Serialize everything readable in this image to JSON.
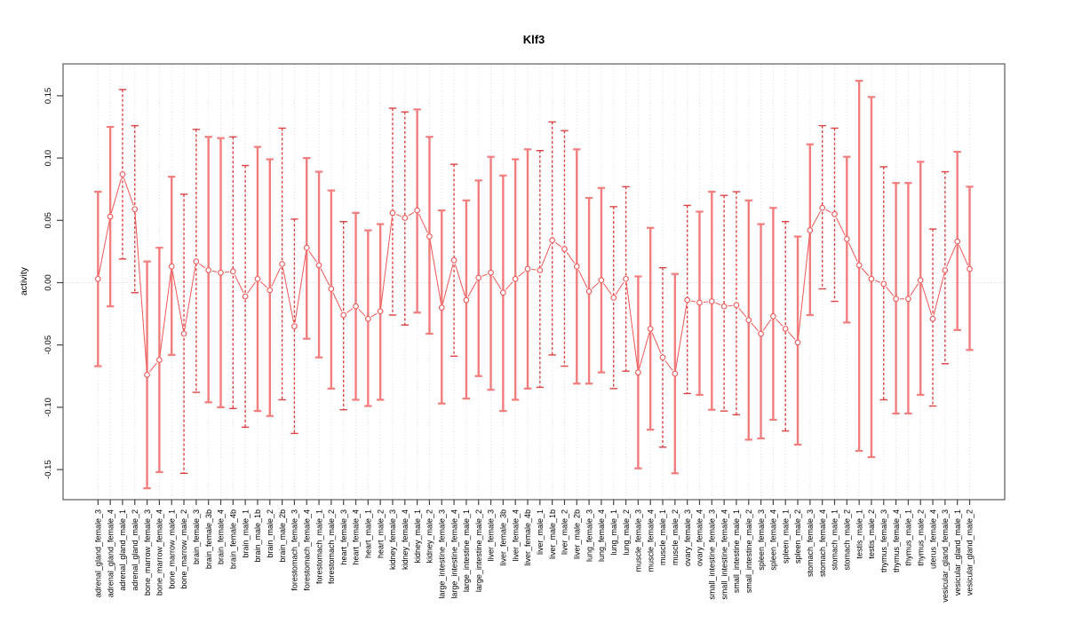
{
  "page": {
    "background": "#ffffff"
  },
  "chart_data": {
    "type": "scatter",
    "subtype": "points-with-error-bars",
    "title": "Klf3",
    "xlabel": "",
    "ylabel": "activity",
    "ylim": [
      -0.17,
      0.17
    ],
    "yticks": [
      0.15,
      0.1,
      0.05,
      0.0,
      -0.05,
      -0.1,
      -0.15
    ],
    "ytick_labels": [
      "0.15",
      "0.10",
      "0.05",
      "0.00",
      "-0.05",
      "-0.10",
      "-0.15"
    ],
    "grid": "vertical-dotted",
    "zero_line": true,
    "legend_position": "none",
    "colors": {
      "point": "#ef5656",
      "line": "#ef5656",
      "bar_solid": "#f27d7d",
      "bar_dashed": "#dc4444",
      "grid": "#d9d9d9",
      "zero_line": "#d9cccc",
      "frame": "#666666",
      "tick": "#444444",
      "text": "#000000"
    },
    "samples": [
      {
        "label": "adrenal_gland_female_3",
        "value": 0.003,
        "lo": -0.067,
        "hi": 0.073,
        "style": "solid"
      },
      {
        "label": "adrenal_gland_female_4",
        "value": 0.053,
        "lo": -0.019,
        "hi": 0.125,
        "style": "solid"
      },
      {
        "label": "adrenal_gland_male_1",
        "value": 0.087,
        "lo": 0.019,
        "hi": 0.155,
        "style": "dashed"
      },
      {
        "label": "adrenal_gland_male_2",
        "value": 0.059,
        "lo": -0.008,
        "hi": 0.126,
        "style": "dashed"
      },
      {
        "label": "bone_marrow_female_3",
        "value": -0.074,
        "lo": -0.165,
        "hi": 0.017,
        "style": "solid"
      },
      {
        "label": "bone_marrow_female_4",
        "value": -0.062,
        "lo": -0.152,
        "hi": 0.028,
        "style": "solid"
      },
      {
        "label": "bone_marrow_male_1",
        "value": 0.013,
        "lo": -0.058,
        "hi": 0.085,
        "style": "solid"
      },
      {
        "label": "bone_marrow_male_2",
        "value": -0.041,
        "lo": -0.153,
        "hi": 0.071,
        "style": "dashed"
      },
      {
        "label": "brain_female_3",
        "value": 0.017,
        "lo": -0.088,
        "hi": 0.123,
        "style": "dashed"
      },
      {
        "label": "brain_female_3b",
        "value": 0.01,
        "lo": -0.096,
        "hi": 0.117,
        "style": "solid"
      },
      {
        "label": "brain_female_4",
        "value": 0.008,
        "lo": -0.1,
        "hi": 0.116,
        "style": "solid"
      },
      {
        "label": "brain_female_4b",
        "value": 0.009,
        "lo": -0.101,
        "hi": 0.117,
        "style": "dashed"
      },
      {
        "label": "brain_male_1",
        "value": -0.011,
        "lo": -0.116,
        "hi": 0.094,
        "style": "dashed"
      },
      {
        "label": "brain_male_1b",
        "value": 0.003,
        "lo": -0.103,
        "hi": 0.109,
        "style": "solid"
      },
      {
        "label": "brain_male_2",
        "value": -0.006,
        "lo": -0.107,
        "hi": 0.099,
        "style": "solid"
      },
      {
        "label": "brain_male_2b",
        "value": 0.015,
        "lo": -0.094,
        "hi": 0.124,
        "style": "dashed"
      },
      {
        "label": "forestomach_female_3",
        "value": -0.035,
        "lo": -0.121,
        "hi": 0.051,
        "style": "dashed"
      },
      {
        "label": "forestomach_female_4",
        "value": 0.028,
        "lo": -0.045,
        "hi": 0.1,
        "style": "solid"
      },
      {
        "label": "forestomach_male_1",
        "value": 0.014,
        "lo": -0.06,
        "hi": 0.089,
        "style": "solid"
      },
      {
        "label": "forestomach_male_2",
        "value": -0.005,
        "lo": -0.085,
        "hi": 0.074,
        "style": "solid"
      },
      {
        "label": "heart_female_3",
        "value": -0.026,
        "lo": -0.102,
        "hi": 0.049,
        "style": "dashed"
      },
      {
        "label": "heart_female_4",
        "value": -0.019,
        "lo": -0.094,
        "hi": 0.056,
        "style": "solid"
      },
      {
        "label": "heart_male_1",
        "value": -0.029,
        "lo": -0.099,
        "hi": 0.042,
        "style": "solid"
      },
      {
        "label": "heart_male_2",
        "value": -0.023,
        "lo": -0.094,
        "hi": 0.047,
        "style": "solid"
      },
      {
        "label": "kidney_female_3",
        "value": 0.056,
        "lo": -0.026,
        "hi": 0.14,
        "style": "dashed"
      },
      {
        "label": "kidney_female_4",
        "value": 0.052,
        "lo": -0.034,
        "hi": 0.137,
        "style": "dashed"
      },
      {
        "label": "kidney_male_1",
        "value": 0.058,
        "lo": -0.024,
        "hi": 0.139,
        "style": "solid"
      },
      {
        "label": "kidney_male_2",
        "value": 0.037,
        "lo": -0.041,
        "hi": 0.117,
        "style": "solid"
      },
      {
        "label": "large_intestine_female_3",
        "value": -0.02,
        "lo": -0.097,
        "hi": 0.058,
        "style": "solid"
      },
      {
        "label": "large_intestine_female_4",
        "value": 0.018,
        "lo": -0.059,
        "hi": 0.095,
        "style": "dashed"
      },
      {
        "label": "large_intestine_male_1",
        "value": -0.014,
        "lo": -0.093,
        "hi": 0.066,
        "style": "solid"
      },
      {
        "label": "large_intestine_male_2",
        "value": 0.004,
        "lo": -0.075,
        "hi": 0.082,
        "style": "solid"
      },
      {
        "label": "liver_female_3",
        "value": 0.008,
        "lo": -0.086,
        "hi": 0.101,
        "style": "solid"
      },
      {
        "label": "liver_female_3b",
        "value": -0.008,
        "lo": -0.103,
        "hi": 0.086,
        "style": "solid"
      },
      {
        "label": "liver_female_4",
        "value": 0.003,
        "lo": -0.094,
        "hi": 0.099,
        "style": "solid"
      },
      {
        "label": "liver_female_4b",
        "value": 0.011,
        "lo": -0.085,
        "hi": 0.107,
        "style": "solid"
      },
      {
        "label": "liver_male_1",
        "value": 0.01,
        "lo": -0.084,
        "hi": 0.106,
        "style": "dashed"
      },
      {
        "label": "liver_male_1b",
        "value": 0.034,
        "lo": -0.058,
        "hi": 0.129,
        "style": "dashed"
      },
      {
        "label": "liver_male_2",
        "value": 0.027,
        "lo": -0.067,
        "hi": 0.122,
        "style": "dashed"
      },
      {
        "label": "liver_male_2b",
        "value": 0.013,
        "lo": -0.081,
        "hi": 0.107,
        "style": "solid"
      },
      {
        "label": "lung_female_3",
        "value": -0.007,
        "lo": -0.081,
        "hi": 0.068,
        "style": "solid"
      },
      {
        "label": "lung_female_4",
        "value": 0.002,
        "lo": -0.072,
        "hi": 0.076,
        "style": "solid"
      },
      {
        "label": "lung_male_1",
        "value": -0.012,
        "lo": -0.085,
        "hi": 0.061,
        "style": "dashed"
      },
      {
        "label": "lung_male_2",
        "value": 0.003,
        "lo": -0.071,
        "hi": 0.077,
        "style": "dashed"
      },
      {
        "label": "muscle_female_3",
        "value": -0.072,
        "lo": -0.149,
        "hi": 0.005,
        "style": "solid"
      },
      {
        "label": "muscle_female_4",
        "value": -0.037,
        "lo": -0.118,
        "hi": 0.044,
        "style": "solid"
      },
      {
        "label": "muscle_male_1",
        "value": -0.06,
        "lo": -0.132,
        "hi": 0.012,
        "style": "dashed"
      },
      {
        "label": "muscle_male_2",
        "value": -0.073,
        "lo": -0.153,
        "hi": 0.007,
        "style": "solid"
      },
      {
        "label": "ovary_female_3",
        "value": -0.014,
        "lo": -0.089,
        "hi": 0.062,
        "style": "dashed"
      },
      {
        "label": "ovary_female_4",
        "value": -0.016,
        "lo": -0.09,
        "hi": 0.057,
        "style": "solid"
      },
      {
        "label": "small_intestine_female_3",
        "value": -0.015,
        "lo": -0.102,
        "hi": 0.073,
        "style": "solid"
      },
      {
        "label": "small_intestine_female_4",
        "value": -0.019,
        "lo": -0.103,
        "hi": 0.07,
        "style": "dashed"
      },
      {
        "label": "small_intestine_male_1",
        "value": -0.018,
        "lo": -0.106,
        "hi": 0.073,
        "style": "dashed"
      },
      {
        "label": "small_intestine_male_2",
        "value": -0.03,
        "lo": -0.126,
        "hi": 0.066,
        "style": "solid"
      },
      {
        "label": "spleen_female_3",
        "value": -0.041,
        "lo": -0.125,
        "hi": 0.047,
        "style": "solid"
      },
      {
        "label": "spleen_female_4",
        "value": -0.027,
        "lo": -0.11,
        "hi": 0.06,
        "style": "solid"
      },
      {
        "label": "spleen_male_1",
        "value": -0.037,
        "lo": -0.119,
        "hi": 0.049,
        "style": "dashed"
      },
      {
        "label": "spleen_male_2",
        "value": -0.048,
        "lo": -0.13,
        "hi": 0.037,
        "style": "solid"
      },
      {
        "label": "stomach_female_3",
        "value": 0.042,
        "lo": -0.026,
        "hi": 0.111,
        "style": "solid"
      },
      {
        "label": "stomach_female_4",
        "value": 0.06,
        "lo": -0.005,
        "hi": 0.126,
        "style": "dashed"
      },
      {
        "label": "stomach_male_1",
        "value": 0.055,
        "lo": -0.015,
        "hi": 0.124,
        "style": "dashed"
      },
      {
        "label": "stomach_male_2",
        "value": 0.035,
        "lo": -0.032,
        "hi": 0.101,
        "style": "solid"
      },
      {
        "label": "testis_male_1",
        "value": 0.014,
        "lo": -0.135,
        "hi": 0.162,
        "style": "solid"
      },
      {
        "label": "testis_male_2",
        "value": 0.003,
        "lo": -0.14,
        "hi": 0.149,
        "style": "solid"
      },
      {
        "label": "thymus_female_3",
        "value": -0.001,
        "lo": -0.094,
        "hi": 0.093,
        "style": "dashed"
      },
      {
        "label": "thymus_female_4",
        "value": -0.013,
        "lo": -0.105,
        "hi": 0.08,
        "style": "solid"
      },
      {
        "label": "thymus_male_1",
        "value": -0.013,
        "lo": -0.105,
        "hi": 0.08,
        "style": "solid"
      },
      {
        "label": "thymus_male_2",
        "value": 0.002,
        "lo": -0.09,
        "hi": 0.097,
        "style": "solid"
      },
      {
        "label": "uterus_female_4",
        "value": -0.029,
        "lo": -0.099,
        "hi": 0.043,
        "style": "dashed"
      },
      {
        "label": "vesicular_gland_female_3",
        "value": 0.01,
        "lo": -0.065,
        "hi": 0.089,
        "style": "dashed"
      },
      {
        "label": "vesicular_gland_male_1",
        "value": 0.033,
        "lo": -0.038,
        "hi": 0.105,
        "style": "solid"
      },
      {
        "label": "vesicular_gland_male_2",
        "value": 0.011,
        "lo": -0.054,
        "hi": 0.077,
        "style": "solid"
      }
    ]
  }
}
